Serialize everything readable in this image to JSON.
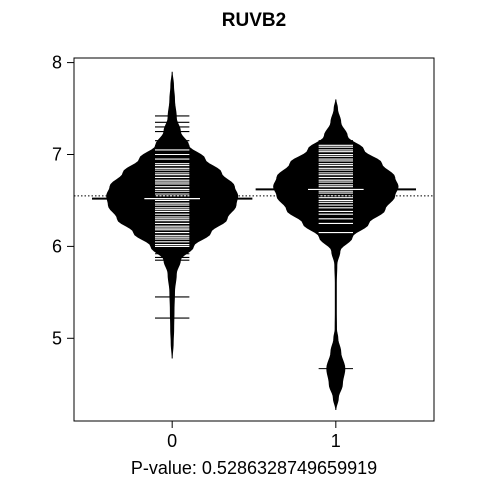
{
  "chart_data": {
    "type": "beanplot",
    "title": "RUVB2",
    "xlabel": "P-value: 0.5286328749659919",
    "ylabel": "",
    "xlim": [
      -0.6,
      1.6
    ],
    "ylim": [
      4.1,
      8.05
    ],
    "yticks": [
      5,
      6,
      7,
      8
    ],
    "categories": [
      "0",
      "1"
    ],
    "overall_mean": 6.55,
    "series": [
      {
        "category": "0",
        "mean": 6.52,
        "density_profile": [
          [
            4.78,
            0.0
          ],
          [
            4.95,
            0.006
          ],
          [
            5.1,
            0.009
          ],
          [
            5.3,
            0.011
          ],
          [
            5.5,
            0.014
          ],
          [
            5.7,
            0.025
          ],
          [
            5.85,
            0.05
          ],
          [
            6.0,
            0.13
          ],
          [
            6.15,
            0.235
          ],
          [
            6.3,
            0.335
          ],
          [
            6.45,
            0.39
          ],
          [
            6.55,
            0.4
          ],
          [
            6.65,
            0.38
          ],
          [
            6.8,
            0.3
          ],
          [
            6.95,
            0.2
          ],
          [
            7.1,
            0.1
          ],
          [
            7.25,
            0.05
          ],
          [
            7.4,
            0.025
          ],
          [
            7.6,
            0.014
          ],
          [
            7.75,
            0.008
          ],
          [
            7.9,
            0.0
          ]
        ],
        "observations": [
          5.22,
          5.45,
          5.85,
          5.88,
          5.92,
          5.96,
          6.0,
          6.02,
          6.05,
          6.08,
          6.1,
          6.12,
          6.15,
          6.18,
          6.2,
          6.22,
          6.25,
          6.28,
          6.3,
          6.32,
          6.35,
          6.38,
          6.4,
          6.42,
          6.45,
          6.47,
          6.5,
          6.52,
          6.55,
          6.57,
          6.6,
          6.62,
          6.65,
          6.68,
          6.7,
          6.72,
          6.75,
          6.78,
          6.8,
          6.83,
          6.85,
          6.88,
          6.9,
          6.95,
          7.0,
          7.05,
          7.1,
          7.15,
          7.25,
          7.3,
          7.35,
          7.42
        ]
      },
      {
        "category": "1",
        "mean": 6.62,
        "density_profile": [
          [
            4.22,
            0.0
          ],
          [
            4.35,
            0.015
          ],
          [
            4.5,
            0.04
          ],
          [
            4.67,
            0.055
          ],
          [
            4.85,
            0.03
          ],
          [
            5.0,
            0.012
          ],
          [
            5.1,
            0.004
          ],
          [
            5.3,
            0.003
          ],
          [
            5.6,
            0.003
          ],
          [
            5.8,
            0.006
          ],
          [
            5.95,
            0.025
          ],
          [
            6.1,
            0.1
          ],
          [
            6.25,
            0.2
          ],
          [
            6.4,
            0.3
          ],
          [
            6.55,
            0.36
          ],
          [
            6.65,
            0.38
          ],
          [
            6.75,
            0.36
          ],
          [
            6.9,
            0.28
          ],
          [
            7.05,
            0.17
          ],
          [
            7.2,
            0.07
          ],
          [
            7.35,
            0.03
          ],
          [
            7.5,
            0.01
          ],
          [
            7.6,
            0.0
          ]
        ],
        "observations": [
          4.67,
          6.15,
          6.25,
          6.3,
          6.35,
          6.38,
          6.42,
          6.45,
          6.48,
          6.5,
          6.53,
          6.55,
          6.58,
          6.6,
          6.62,
          6.65,
          6.67,
          6.7,
          6.72,
          6.75,
          6.78,
          6.8,
          6.83,
          6.85,
          6.88,
          6.9,
          6.93,
          6.95,
          6.98,
          7.0,
          7.03,
          7.05,
          7.08,
          7.1,
          7.15
        ]
      }
    ]
  }
}
